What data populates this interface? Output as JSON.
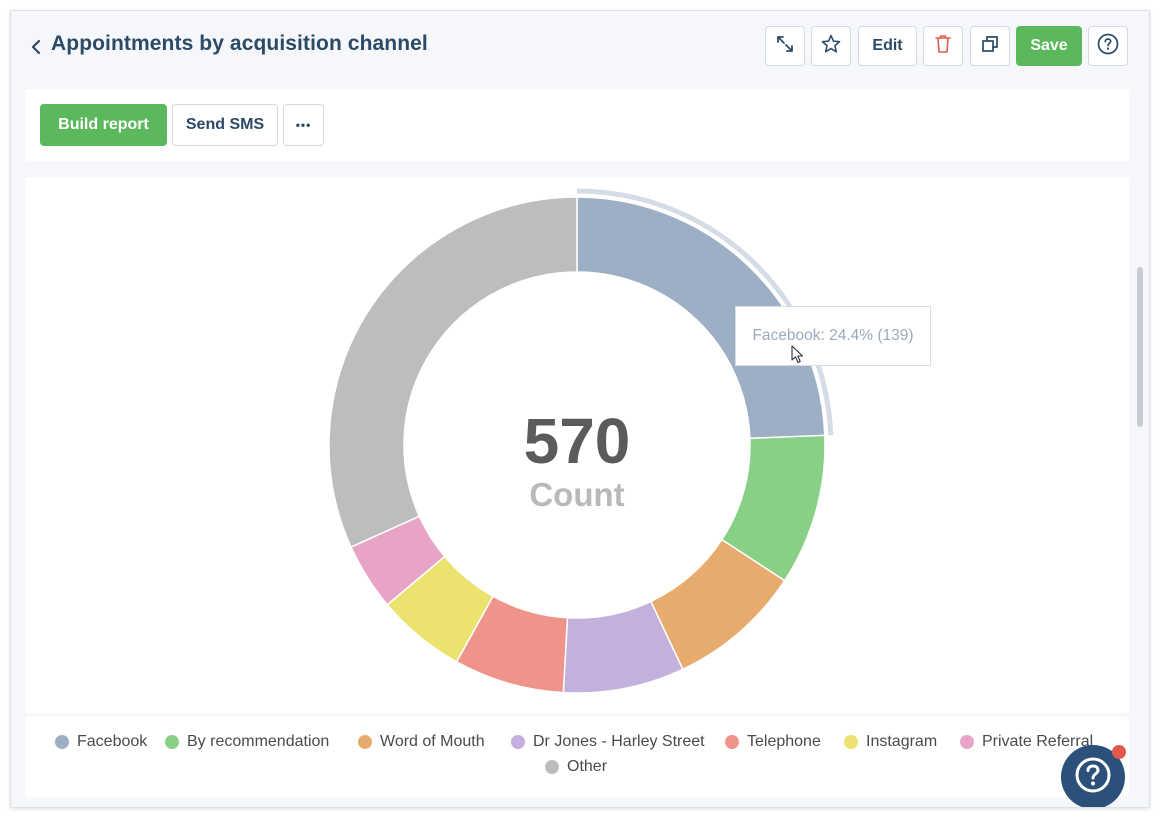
{
  "header": {
    "title": "Appointments by acquisition channel",
    "edit_label": "Edit",
    "save_label": "Save"
  },
  "actions": {
    "build_report": "Build report",
    "send_sms": "Send SMS",
    "more": "•••"
  },
  "colors": {
    "green": "#5cb85c",
    "navy": "#2b5079",
    "delete_red": "#e05a4b"
  },
  "tooltip": {
    "text": "Facebook: 24.4% (139)"
  },
  "chart_data": {
    "type": "pie",
    "variant": "donut",
    "center_value": "570",
    "center_label": "Count",
    "total": 570,
    "series": [
      {
        "name": "Facebook",
        "value": 139,
        "color": "#9cafc4"
      },
      {
        "name": "By recommendation",
        "value": 56,
        "color": "#87d085"
      },
      {
        "name": "Word of Mouth",
        "value": 50,
        "color": "#e8ab6e"
      },
      {
        "name": "Dr Jones - Harley Street",
        "value": 45,
        "color": "#c4b0dc"
      },
      {
        "name": "Telephone",
        "value": 41,
        "color": "#ef948a"
      },
      {
        "name": "Instagram",
        "value": 33,
        "color": "#ebe270"
      },
      {
        "name": "Private Referral",
        "value": 25,
        "color": "#e8a4c7"
      },
      {
        "name": "Other",
        "value": 181,
        "color": "#bdbdbd"
      }
    ],
    "highlighted": "Facebook",
    "legend_position": "bottom"
  }
}
